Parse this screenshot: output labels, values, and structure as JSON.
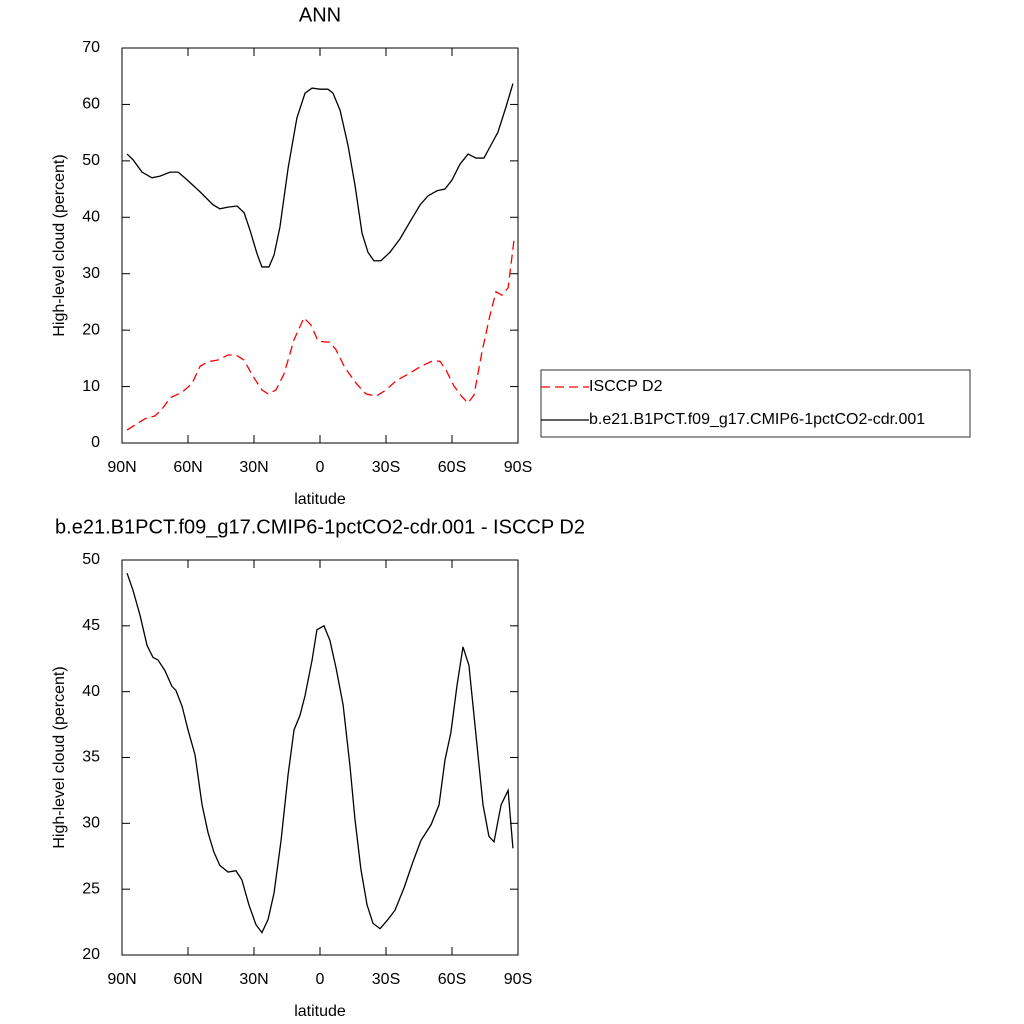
{
  "chart_data": [
    {
      "type": "line",
      "title": "ANN",
      "xlabel": "latitude",
      "ylabel": "High-level cloud (percent)",
      "xlim": [
        90,
        -90
      ],
      "xticks": [
        {
          "value": 90,
          "label": "90N"
        },
        {
          "value": 60,
          "label": "60N"
        },
        {
          "value": 30,
          "label": "30N"
        },
        0,
        {
          "value": -30,
          "label": "30S"
        },
        {
          "value": -60,
          "label": "60S"
        },
        {
          "value": -90,
          "label": "90S"
        }
      ],
      "ylim": [
        0,
        70
      ],
      "yticks": [
        0,
        10,
        20,
        30,
        40,
        50,
        60,
        70
      ],
      "legend": "right",
      "series": [
        {
          "name": "ISCCP D2",
          "color": "#ff0000",
          "linestyle": "dashed",
          "x": [
            87.7,
            84.1,
            79.5,
            75,
            71.8,
            68.2,
            62.7,
            58.2,
            54.5,
            50.9,
            46.4,
            41.8,
            38.2,
            34.5,
            30.9,
            26.4,
            23.6,
            20,
            16.4,
            11.8,
            7.3,
            4.1,
            0.9,
            -2.3,
            -4.5,
            -7.3,
            -11.4,
            -16.4,
            -20.9,
            -25.5,
            -30,
            -34.5,
            -40.9,
            -45.5,
            -50.9,
            -54.5,
            -57.3,
            -60.9,
            -64.5,
            -67.3,
            -70,
            -73.6,
            -77.3,
            -80,
            -82.7,
            -85.5,
            -88.2
          ],
          "values": [
            2.3,
            3.2,
            4.3,
            4.8,
            6.0,
            8.0,
            9.0,
            10.5,
            13.6,
            14.4,
            14.7,
            15.6,
            15.6,
            14.7,
            12.1,
            9.4,
            8.7,
            9.4,
            12.2,
            18.3,
            22.2,
            20.9,
            18.1,
            17.9,
            17.9,
            16.5,
            13.3,
            10.6,
            8.7,
            8.3,
            9.4,
            11.0,
            12.4,
            13.5,
            14.5,
            14.5,
            12.9,
            10.1,
            8.2,
            7.1,
            8.5,
            16.1,
            22.7,
            26.8,
            26.2,
            27.5,
            36.0
          ]
        },
        {
          "name": "b.e21.B1PCT.f09_g17.CMIP6-1pctCO2-cdr.001",
          "color": "#000000",
          "linestyle": "solid",
          "x": [
            87.7,
            85,
            80.9,
            76.4,
            72.7,
            68.2,
            64.5,
            60.9,
            54.5,
            48.6,
            45.5,
            41.8,
            37.7,
            34.5,
            31.8,
            28.6,
            26.4,
            23.2,
            20.9,
            18.2,
            14.5,
            10.5,
            6.8,
            3.6,
            0,
            -3.6,
            -5.9,
            -9.1,
            -12.7,
            -15.9,
            -19.1,
            -21.8,
            -24.5,
            -27.7,
            -31.8,
            -36.4,
            -40.9,
            -45.5,
            -49.1,
            -53.2,
            -56.8,
            -60,
            -63.6,
            -67.3,
            -70.9,
            -74.5,
            -77.3,
            -80.9,
            -84.5,
            -87.7
          ],
          "values": [
            51.2,
            50.2,
            48.0,
            47.0,
            47.3,
            48.0,
            48.0,
            46.8,
            44.5,
            42.2,
            41.5,
            41.8,
            42.0,
            40.8,
            37.7,
            33.5,
            31.2,
            31.2,
            33.3,
            38.3,
            48.7,
            57.6,
            62.0,
            62.9,
            62.7,
            62.7,
            62.0,
            59.0,
            52.8,
            45.7,
            37.2,
            33.8,
            32.3,
            32.3,
            33.8,
            36.2,
            39.2,
            42.2,
            43.8,
            44.7,
            45.0,
            46.6,
            49.4,
            51.2,
            50.5,
            50.5,
            52.5,
            55.1,
            59.5,
            63.7
          ]
        }
      ]
    },
    {
      "type": "line",
      "title": "b.e21.B1PCT.f09_g17.CMIP6-1pctCO2-cdr.001 - ISCCP D2",
      "xlabel": "latitude",
      "ylabel": "High-level cloud (percent)",
      "xlim": [
        90,
        -90
      ],
      "xticks": [
        {
          "value": 90,
          "label": "90N"
        },
        {
          "value": 60,
          "label": "60N"
        },
        {
          "value": 30,
          "label": "30N"
        },
        0,
        {
          "value": -30,
          "label": "30S"
        },
        {
          "value": -60,
          "label": "60S"
        },
        {
          "value": -90,
          "label": "90S"
        }
      ],
      "ylim": [
        20,
        50
      ],
      "yticks": [
        20,
        25,
        30,
        35,
        40,
        45,
        50
      ],
      "color": "#000000",
      "x": [
        87.7,
        85,
        81.8,
        78.6,
        75.9,
        73.6,
        70.5,
        67.3,
        65.5,
        62.7,
        60,
        56.8,
        53.6,
        50.9,
        48.2,
        45.5,
        41.8,
        38.2,
        35.5,
        32.3,
        29.1,
        26.4,
        23.6,
        20.9,
        17.7,
        14.5,
        11.8,
        9.1,
        6.8,
        3.6,
        1.4,
        -1.8,
        -4.5,
        -7.3,
        -10.5,
        -13.6,
        -15.9,
        -18.6,
        -21.4,
        -24.1,
        -27.3,
        -30.9,
        -34.1,
        -38.2,
        -42.3,
        -45.9,
        -50.5,
        -54.1,
        -56.8,
        -59.5,
        -62.3,
        -65,
        -67.7,
        -70.9,
        -74.1,
        -76.8,
        -79.1,
        -82.3,
        -85.5,
        -87.7
      ],
      "values": [
        49.0,
        47.7,
        45.8,
        43.5,
        42.6,
        42.4,
        41.6,
        40.4,
        40.1,
        38.9,
        37.1,
        35.2,
        31.4,
        29.3,
        27.8,
        26.8,
        26.3,
        26.4,
        25.7,
        23.8,
        22.3,
        21.7,
        22.7,
        24.7,
        28.7,
        33.7,
        37.1,
        38.2,
        39.7,
        42.4,
        44.7,
        45.0,
        43.9,
        41.8,
        39.0,
        34.4,
        30.3,
        26.5,
        23.8,
        22.4,
        22.0,
        22.7,
        23.4,
        25.1,
        27.1,
        28.7,
        29.9,
        31.4,
        34.8,
        36.9,
        40.5,
        43.4,
        42.0,
        36.7,
        31.4,
        29.0,
        28.6,
        31.4,
        32.5,
        28.1
      ]
    }
  ]
}
